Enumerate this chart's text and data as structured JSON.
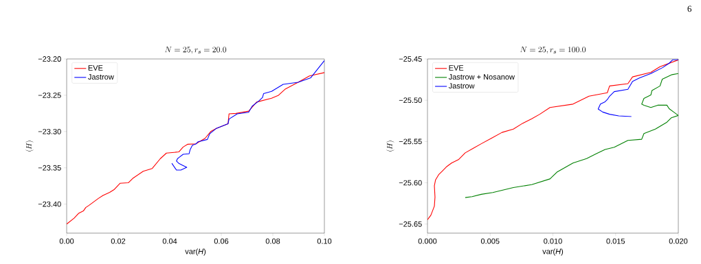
{
  "chart_data": [
    {
      "type": "line",
      "title": "N = 25, r_s = 20.0",
      "xlabel": "var(*H*)",
      "ylabel": "\\langle H \\rangle",
      "xlim": [
        0,
        0.1
      ],
      "ylim": [
        -23.44,
        -23.2
      ],
      "xticks": [
        {
          "value": 0,
          "label": "0.00"
        },
        {
          "value": 0.02,
          "label": "0.02"
        },
        {
          "value": 0.04,
          "label": "0.04"
        },
        {
          "value": 0.06,
          "label": "0.06"
        },
        {
          "value": 0.08,
          "label": "0.08"
        },
        {
          "value": 0.1,
          "label": "0.10"
        }
      ],
      "yticks": [
        {
          "value": -23.4,
          "label": "−23.40"
        },
        {
          "value": -23.35,
          "label": "−23.35"
        },
        {
          "value": -23.3,
          "label": "−23.30"
        },
        {
          "value": -23.25,
          "label": "−23.25"
        },
        {
          "value": -23.2,
          "label": "−23.20"
        }
      ],
      "legend": "top left",
      "grid": false,
      "series": [
        {
          "name": "EVE",
          "color": "#ff0000",
          "x": [
            0.0,
            0.0029,
            0.0047,
            0.0065,
            0.0074,
            0.0087,
            0.0105,
            0.0123,
            0.0141,
            0.0167,
            0.0185,
            0.0207,
            0.0239,
            0.0256,
            0.0297,
            0.0332,
            0.0363,
            0.0387,
            0.0435,
            0.0452,
            0.047,
            0.0501,
            0.0537,
            0.0559,
            0.0581,
            0.0626,
            0.063,
            0.0657,
            0.0706,
            0.0737,
            0.0795,
            0.0822,
            0.0849,
            0.0898,
            0.0942,
            0.1
          ],
          "values": [
            -23.4275,
            -23.4194,
            -23.4125,
            -23.4094,
            -23.4047,
            -23.4016,
            -23.3969,
            -23.3922,
            -23.3881,
            -23.3838,
            -23.3797,
            -23.3713,
            -23.3706,
            -23.3647,
            -23.3547,
            -23.3509,
            -23.3375,
            -23.3297,
            -23.3281,
            -23.3213,
            -23.3175,
            -23.3169,
            -23.3094,
            -23.3,
            -23.2956,
            -23.2894,
            -23.2756,
            -23.275,
            -23.2719,
            -23.2594,
            -23.2541,
            -23.25,
            -23.2413,
            -23.2322,
            -23.2234,
            -23.2188
          ]
        },
        {
          "name": "Jastrow",
          "color": "#0000ff",
          "x": [
            0.0408,
            0.0426,
            0.0443,
            0.0466,
            0.0452,
            0.0435,
            0.0426,
            0.043,
            0.0435,
            0.0452,
            0.0475,
            0.0479,
            0.0488,
            0.0501,
            0.051,
            0.0546,
            0.0555,
            0.0581,
            0.0626,
            0.063,
            0.0662,
            0.0706,
            0.072,
            0.0746,
            0.076,
            0.0764,
            0.0795,
            0.084,
            0.0898,
            0.0947,
            0.1
          ],
          "values": [
            -23.3438,
            -23.3531,
            -23.3531,
            -23.3494,
            -23.3469,
            -23.3438,
            -23.3406,
            -23.3375,
            -23.3359,
            -23.3313,
            -23.3306,
            -23.325,
            -23.3188,
            -23.3172,
            -23.3141,
            -23.3109,
            -23.3031,
            -23.2956,
            -23.2894,
            -23.2828,
            -23.2756,
            -23.2734,
            -23.265,
            -23.2578,
            -23.2531,
            -23.2478,
            -23.2447,
            -23.235,
            -23.2322,
            -23.2259,
            -23.2022
          ]
        }
      ]
    },
    {
      "type": "line",
      "title": "N = 25, r_s = 100.0",
      "xlabel": "var(*H*)",
      "ylabel": "\\langle H \\rangle",
      "xlim": [
        0,
        0.02
      ],
      "ylim": [
        -25.661,
        -25.45
      ],
      "xticks": [
        {
          "value": 0,
          "label": "0.000"
        },
        {
          "value": 0.005,
          "label": "0.005"
        },
        {
          "value": 0.01,
          "label": "0.010"
        },
        {
          "value": 0.015,
          "label": "0.015"
        },
        {
          "value": 0.02,
          "label": "0.020"
        }
      ],
      "yticks": [
        {
          "value": -25.65,
          "label": "−25.65"
        },
        {
          "value": -25.6,
          "label": "−25.60"
        },
        {
          "value": -25.55,
          "label": "−25.55"
        },
        {
          "value": -25.5,
          "label": "−25.50"
        },
        {
          "value": -25.45,
          "label": "−25.45"
        }
      ],
      "legend": "top left",
      "grid": false,
      "annotations": [
        "6"
      ],
      "series": [
        {
          "name": "EVE",
          "color": "#ff0000",
          "x": [
            0,
            0.00027,
            0.00055,
            0.0006,
            0.00055,
            0.00064,
            0.00091,
            0.00119,
            0.00155,
            0.00192,
            0.00247,
            0.00301,
            0.00365,
            0.00429,
            0.00511,
            0.00594,
            0.00685,
            0.00758,
            0.00831,
            0.00895,
            0.00977,
            0.0116,
            0.01288,
            0.01434,
            0.01452,
            0.01598,
            0.01635,
            0.01781,
            0.01854,
            0.02
          ],
          "values": [
            -25.6448,
            -25.6393,
            -25.6283,
            -25.6173,
            -25.6036,
            -25.5967,
            -25.5898,
            -25.5857,
            -25.5802,
            -25.5761,
            -25.572,
            -25.5637,
            -25.5582,
            -25.5527,
            -25.5459,
            -25.539,
            -25.5349,
            -25.528,
            -25.5225,
            -25.517,
            -25.5088,
            -25.5047,
            -25.4951,
            -25.4909,
            -25.4827,
            -25.4799,
            -25.4717,
            -25.4662,
            -25.4593,
            -25.4511
          ]
        },
        {
          "name": "Jastrow + Nosanow",
          "color": "#008000",
          "x": [
            0.00301,
            0.00356,
            0.00429,
            0.00521,
            0.00685,
            0.00831,
            0.00977,
            0.01032,
            0.0116,
            0.01269,
            0.01342,
            0.01416,
            0.01489,
            0.01598,
            0.01708,
            0.01726,
            0.01817,
            0.01909,
            0.01945,
            0.02,
            0.01963,
            0.01927,
            0.01909,
            0.01836,
            0.01781,
            0.01726,
            0.01708,
            0.01726,
            0.01781,
            0.0179,
            0.01854,
            0.01872,
            0.0195,
            0.02
          ],
          "values": [
            -25.6179,
            -25.6168,
            -25.614,
            -25.6118,
            -25.6058,
            -25.6022,
            -25.5953,
            -25.5871,
            -25.5761,
            -25.5706,
            -25.5651,
            -25.5596,
            -25.5569,
            -25.5486,
            -25.5473,
            -25.5404,
            -25.5349,
            -25.5266,
            -25.5212,
            -25.5184,
            -25.5143,
            -25.5102,
            -25.506,
            -25.506,
            -25.5088,
            -25.506,
            -25.5047,
            -25.4978,
            -25.4937,
            -25.4882,
            -25.4827,
            -25.4745,
            -25.469,
            -25.4676
          ]
        },
        {
          "name": "Jastrow",
          "color": "#0000ff",
          "x": [
            0.01626,
            0.01525,
            0.01452,
            0.01397,
            0.01361,
            0.01379,
            0.01416,
            0.01434,
            0.01452,
            0.01489,
            0.01598,
            0.01635,
            0.01689,
            0.01781,
            0.01872,
            0.01927,
            0.01954,
            0.02
          ],
          "values": [
            -25.5198,
            -25.519,
            -25.517,
            -25.5143,
            -25.5107,
            -25.5047,
            -25.5019,
            -25.4992,
            -25.4951,
            -25.4896,
            -25.4868,
            -25.4772,
            -25.4731,
            -25.4676,
            -25.4607,
            -25.4552,
            -25.4511,
            -25.4508
          ]
        }
      ]
    }
  ]
}
